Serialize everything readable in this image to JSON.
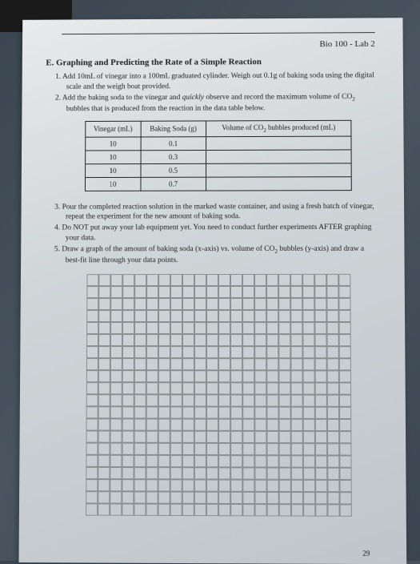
{
  "course_header": "Bio 100 - Lab 2",
  "section_title": "E. Graphing and Predicting the Rate of a Simple Reaction",
  "instructions_part1": [
    "1.  Add 10mL of vinegar into a 100mL graduated cylinder. Weigh out 0.1g of baking soda using the digital scale and the weigh boat provided.",
    "2.  Add the baking soda to the vinegar and quickly observe and record the maximum volume of CO₂ bubbles that is produced from the reaction in the data table below."
  ],
  "table": {
    "columns": [
      "Vinegar (mL)",
      "Baking Soda (g)",
      "Volume of CO₂ bubbles produced (mL)"
    ],
    "rows": [
      [
        "10",
        "0.1",
        ""
      ],
      [
        "10",
        "0.3",
        ""
      ],
      [
        "10",
        "0.5",
        ""
      ],
      [
        "10",
        "0.7",
        ""
      ]
    ]
  },
  "instructions_part2": [
    "3.  Pour the completed reaction solution in the marked waste container, and using a fresh batch of vinegar, repeat the experiment for the new amount of baking soda.",
    "4.  Do NOT put away your lab equipment yet. You need to conduct further experiments AFTER graphing your data.",
    "5.  Draw a graph of the amount of baking soda (x-axis) vs. volume of CO₂ bubbles (y-axis) and draw a best-fit line through your data points."
  ],
  "graph": {
    "cols": 22,
    "rows": 20
  },
  "page_number": "29"
}
